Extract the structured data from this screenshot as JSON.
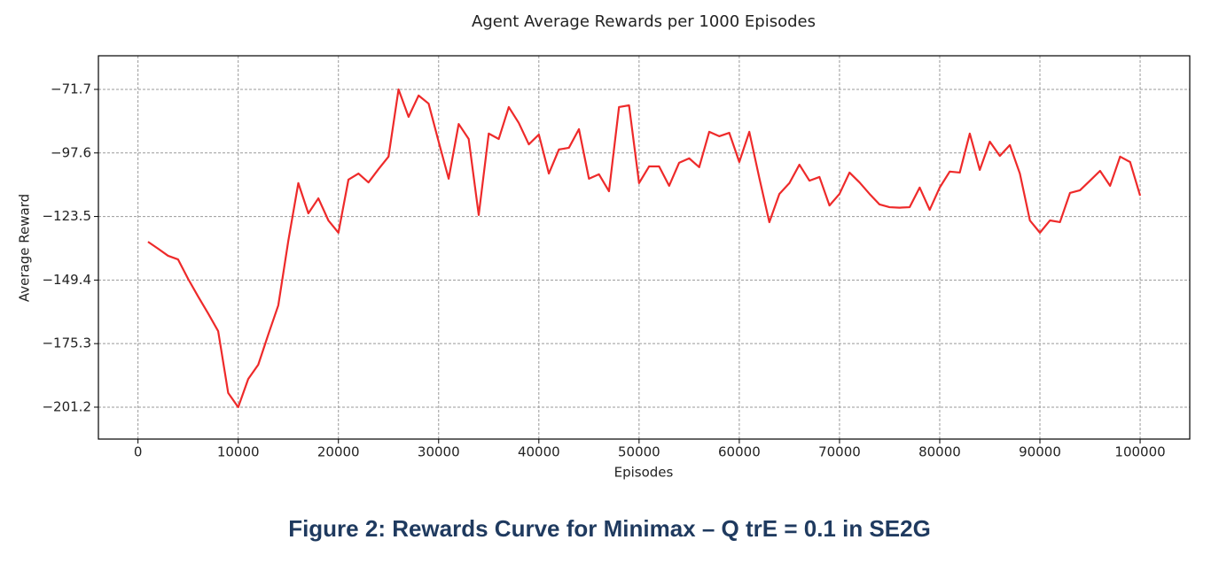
{
  "chart_data": {
    "type": "line",
    "title": "Agent Average Rewards per 1000 Episodes",
    "xlabel": "Episodes",
    "ylabel": "Average Reward",
    "x": [
      1000,
      2000,
      3000,
      4000,
      5000,
      6000,
      7000,
      8000,
      9000,
      10000,
      11000,
      12000,
      13000,
      14000,
      15000,
      16000,
      17000,
      18000,
      19000,
      20000,
      21000,
      22000,
      23000,
      24000,
      25000,
      26000,
      27000,
      28000,
      29000,
      30000,
      31000,
      32000,
      33000,
      34000,
      35000,
      36000,
      37000,
      38000,
      39000,
      40000,
      41000,
      42000,
      43000,
      44000,
      45000,
      46000,
      47000,
      48000,
      49000,
      50000,
      51000,
      52000,
      53000,
      54000,
      55000,
      56000,
      57000,
      58000,
      59000,
      60000,
      61000,
      62000,
      63000,
      64000,
      65000,
      66000,
      67000,
      68000,
      69000,
      70000,
      71000,
      72000,
      73000,
      74000,
      75000,
      76000,
      77000,
      78000,
      79000,
      80000,
      81000,
      82000,
      83000,
      84000,
      85000,
      86000,
      87000,
      88000,
      89000,
      90000,
      91000,
      92000,
      93000,
      94000,
      95000,
      96000,
      97000,
      98000,
      99000,
      100000
    ],
    "values": [
      -133.8,
      -136.6,
      -139.5,
      -141.0,
      -148.9,
      -156.1,
      -163.0,
      -170.2,
      -195.4,
      -201.2,
      -189.7,
      -183.9,
      -171.6,
      -159.7,
      -133.4,
      -109.9,
      -122.2,
      -116.1,
      -125.1,
      -130.1,
      -108.5,
      -106.0,
      -109.6,
      -104.2,
      -99.1,
      -71.7,
      -82.9,
      -74.2,
      -77.5,
      -93.0,
      -108.1,
      -85.8,
      -91.9,
      -122.9,
      -89.7,
      -91.9,
      -78.9,
      -85.4,
      -94.1,
      -90.1,
      -106.0,
      -96.2,
      -95.5,
      -87.9,
      -108.1,
      -106.3,
      -113.2,
      -78.9,
      -78.2,
      -109.9,
      -103.1,
      -103.1,
      -111.0,
      -101.6,
      -99.8,
      -103.4,
      -89.0,
      -90.8,
      -89.4,
      -101.3,
      -89.0,
      -107.8,
      -125.8,
      -114.3,
      -109.9,
      -102.4,
      -108.9,
      -107.4,
      -119.0,
      -114.3,
      -105.6,
      -109.6,
      -114.3,
      -118.6,
      -119.7,
      -119.9,
      -119.7,
      -111.7,
      -120.8,
      -111.7,
      -105.2,
      -105.6,
      -89.7,
      -104.5,
      -93.0,
      -98.8,
      -94.4,
      -106.0,
      -125.1,
      -130.1,
      -125.1,
      -125.8,
      -113.9,
      -112.8,
      -108.9,
      -104.9,
      -111.0,
      -99.1,
      -101.3,
      -115.0
    ],
    "color": "#ee2a2a",
    "xlim": [
      -3950,
      104950
    ],
    "ylim": [
      -214.2,
      -58.0
    ],
    "xticks": [
      0,
      10000,
      20000,
      30000,
      40000,
      50000,
      60000,
      70000,
      80000,
      90000,
      100000
    ],
    "yticks": [
      {
        "value": -71.7,
        "label": "−71.7"
      },
      {
        "value": -97.6,
        "label": "−97.6"
      },
      {
        "value": -123.5,
        "label": "−123.5"
      },
      {
        "value": -149.4,
        "label": "−149.4"
      },
      {
        "value": -175.3,
        "label": "−175.3"
      },
      {
        "value": -201.2,
        "label": "−201.2"
      }
    ],
    "grid": true
  },
  "caption": "Figure 2: Rewards Curve for Minimax – Q trE = 0.1 in SE2G"
}
